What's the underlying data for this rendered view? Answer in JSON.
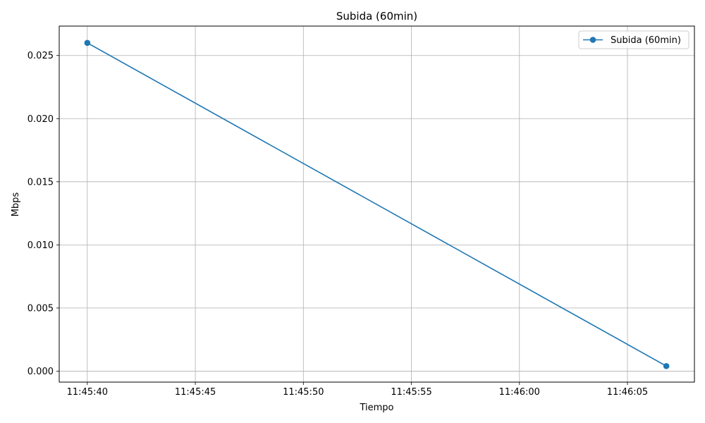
{
  "chart_data": {
    "type": "line",
    "title": "Subida (60min)",
    "xlabel": "Tiempo",
    "ylabel": "Mbps",
    "x": [
      "11:45:40",
      "11:46:06.8"
    ],
    "series": [
      {
        "name": "Subida (60min)",
        "x": [
          "11:45:40",
          "11:46:06.8"
        ],
        "values": [
          0.026,
          0.0004
        ],
        "color": "#1f77b4",
        "marker": "circle"
      }
    ],
    "xticks": [
      "11:45:40",
      "11:45:45",
      "11:45:50",
      "11:45:55",
      "11:46:00",
      "11:46:05"
    ],
    "yticks": [
      "0.000",
      "0.005",
      "0.010",
      "0.015",
      "0.020",
      "0.025"
    ],
    "xlim": [
      "11:45:38.7",
      "11:46:08.1"
    ],
    "ylim": [
      -0.00087,
      0.02733
    ],
    "grid": true,
    "legend": "top-right"
  }
}
